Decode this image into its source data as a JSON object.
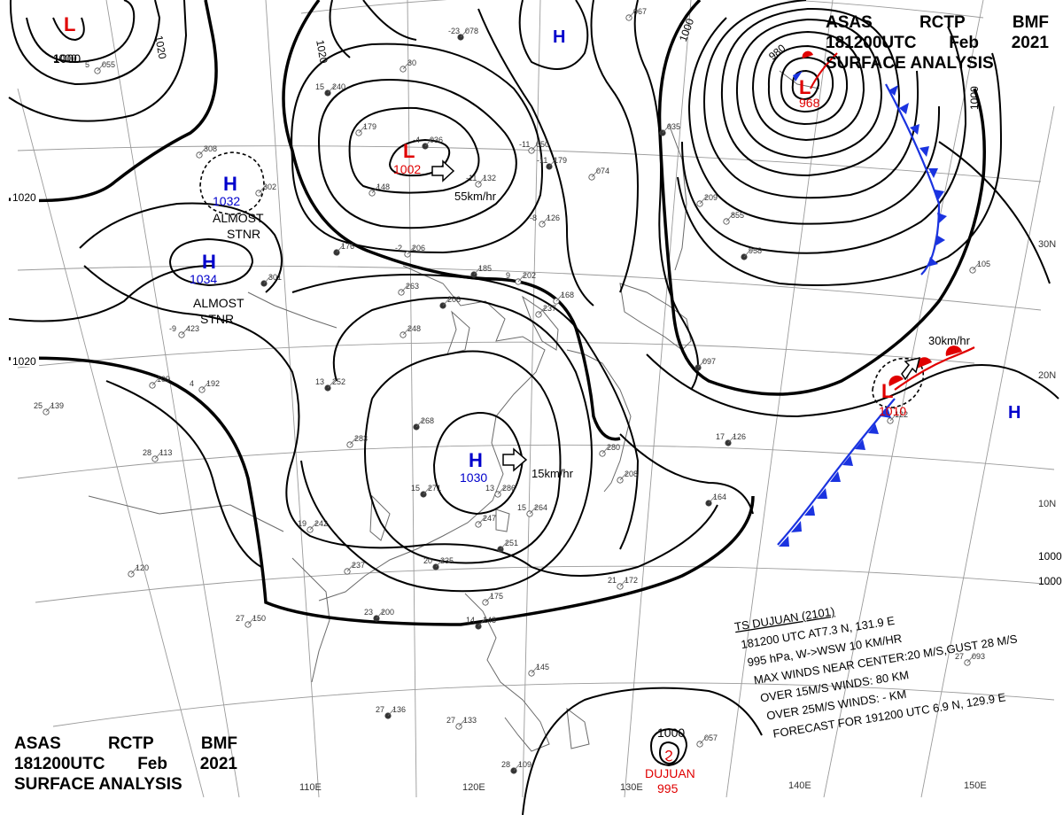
{
  "header": {
    "line1": [
      "ASAS",
      "RCTP",
      "BMF"
    ],
    "line2": [
      "181200UTC",
      "Feb",
      "2021"
    ],
    "line3": "SURFACE ANALYSIS"
  },
  "isobar_labels": [
    "1020",
    "1020",
    "1020",
    "1020",
    "1000",
    "1000",
    "980",
    "1000",
    "1000",
    "1000"
  ],
  "pressure_centers": [
    {
      "type": "L",
      "value": "1000",
      "color": "#e00000"
    },
    {
      "type": "H",
      "value": "1032",
      "color": "#0000cc",
      "note": [
        "ALMOST",
        "STNR"
      ]
    },
    {
      "type": "H",
      "value": "1034",
      "color": "#0000cc",
      "note": [
        "ALMOST",
        "STNR"
      ]
    },
    {
      "type": "L",
      "value": "1002",
      "color": "#e00000",
      "motion": "55km/hr"
    },
    {
      "type": "H",
      "value": "",
      "color": "#0000cc"
    },
    {
      "type": "L",
      "value": "968",
      "color": "#e00000"
    },
    {
      "type": "H",
      "value": "1030",
      "color": "#0000cc",
      "motion": "15km/hr"
    },
    {
      "type": "L",
      "value": "1010",
      "color": "#e00000",
      "motion": "30km/hr"
    },
    {
      "type": "H",
      "value": "",
      "color": "#0000cc"
    }
  ],
  "typhoon": {
    "name": "DUJUAN",
    "pressure": "995",
    "isobar": "1000"
  },
  "advisory": [
    "TS DUJUAN (2101)",
    "181200 UTC  AT7.3 N, 131.9 E",
    "995 hPa, W->WSW  10 KM/HR",
    "MAX WINDS NEAR CENTER:20 M/S,GUST 28 M/S",
    "OVER 15M/S WINDS: 80 KM",
    "OVER 25M/S WINDS: - KM",
    "FORECAST FOR 191200 UTC 6.9 N, 129.9 E"
  ],
  "longitudes": [
    "110E",
    "120E",
    "130E",
    "140E",
    "150E"
  ],
  "latitudes": [
    "30N",
    "20N",
    "10N"
  ],
  "colors": {
    "high": "#0000cc",
    "low": "#e00000",
    "cold_front": "#1a33e0",
    "warm_front": "#e00000",
    "isobar": "#000000"
  },
  "station_obs": [
    {
      "t": "-23",
      "p": "078"
    },
    {
      "t": "",
      "p": "067"
    },
    {
      "t": "5",
      "p": "055"
    },
    {
      "t": "15",
      "p": "240"
    },
    {
      "t": "",
      "p": "30"
    },
    {
      "t": "",
      "p": "179"
    },
    {
      "t": "-4",
      "p": "036"
    },
    {
      "t": "",
      "p": "148"
    },
    {
      "t": "-11",
      "p": "050"
    },
    {
      "t": "-11",
      "p": "179"
    },
    {
      "t": "-11",
      "p": "132"
    },
    {
      "t": "",
      "p": "074"
    },
    {
      "t": "",
      "p": "035"
    },
    {
      "t": "",
      "p": "209"
    },
    {
      "t": "",
      "p": "855"
    },
    {
      "t": "",
      "p": "958"
    },
    {
      "t": "",
      "p": "308"
    },
    {
      "t": "",
      "p": "302"
    },
    {
      "t": "",
      "p": "176"
    },
    {
      "t": "-2",
      "p": "206"
    },
    {
      "t": "-8",
      "p": "126"
    },
    {
      "t": "",
      "p": "185"
    },
    {
      "t": "9",
      "p": "202"
    },
    {
      "t": "",
      "p": "263"
    },
    {
      "t": "",
      "p": "206"
    },
    {
      "t": "",
      "p": "168"
    },
    {
      "t": "",
      "p": "237"
    },
    {
      "t": "",
      "p": "301"
    },
    {
      "t": "-9",
      "p": "423"
    },
    {
      "t": "",
      "p": "248"
    },
    {
      "t": "",
      "p": "097"
    },
    {
      "t": "",
      "p": "105"
    },
    {
      "t": "4",
      "p": "192"
    },
    {
      "t": "13",
      "p": "252"
    },
    {
      "t": "",
      "p": "109"
    },
    {
      "t": "25",
      "p": "139"
    },
    {
      "t": "",
      "p": "268"
    },
    {
      "t": "",
      "p": "283"
    },
    {
      "t": "",
      "p": "280"
    },
    {
      "t": "17",
      "p": "126"
    },
    {
      "t": "",
      "p": "122"
    },
    {
      "t": "28",
      "p": "113"
    },
    {
      "t": "15",
      "p": "271"
    },
    {
      "t": "13",
      "p": "286"
    },
    {
      "t": "",
      "p": "208"
    },
    {
      "t": "",
      "p": "164"
    },
    {
      "t": "",
      "p": "247"
    },
    {
      "t": "15",
      "p": "264"
    },
    {
      "t": "",
      "p": "251"
    },
    {
      "t": "19",
      "p": "242"
    },
    {
      "t": "",
      "p": "237"
    },
    {
      "t": "20",
      "p": "235"
    },
    {
      "t": "",
      "p": "120"
    },
    {
      "t": "21",
      "p": "172"
    },
    {
      "t": "23",
      "p": "200"
    },
    {
      "t": "",
      "p": "175"
    },
    {
      "t": "27",
      "p": "150"
    },
    {
      "t": "14",
      "p": "148"
    },
    {
      "t": "",
      "p": "145"
    },
    {
      "t": "27",
      "p": "093"
    },
    {
      "t": "27",
      "p": "136"
    },
    {
      "t": "27",
      "p": "133"
    },
    {
      "t": "",
      "p": "057"
    },
    {
      "t": "28",
      "p": "109"
    }
  ]
}
